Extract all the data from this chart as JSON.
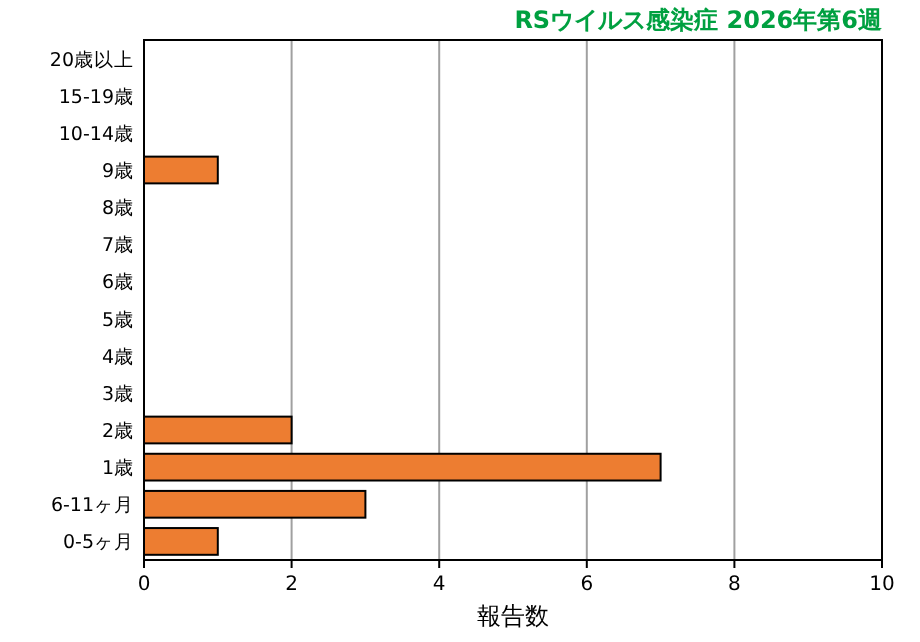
{
  "chart_data": {
    "type": "bar",
    "orientation": "horizontal",
    "title": "RSウイルス感染症 2026年第6週",
    "xlabel": "報告数",
    "categories": [
      "20歳以上",
      "15-19歳",
      "10-14歳",
      "9歳",
      "8歳",
      "7歳",
      "6歳",
      "5歳",
      "4歳",
      "3歳",
      "2歳",
      "1歳",
      "6-11ヶ月",
      "0-5ヶ月"
    ],
    "values": [
      0,
      0,
      0,
      1,
      0,
      0,
      0,
      0,
      0,
      0,
      2,
      7,
      3,
      1
    ],
    "color": "#ed7d31",
    "xlim": [
      0,
      10
    ],
    "xticks": [
      0,
      2,
      4,
      6,
      8,
      10
    ],
    "grid": "x"
  }
}
